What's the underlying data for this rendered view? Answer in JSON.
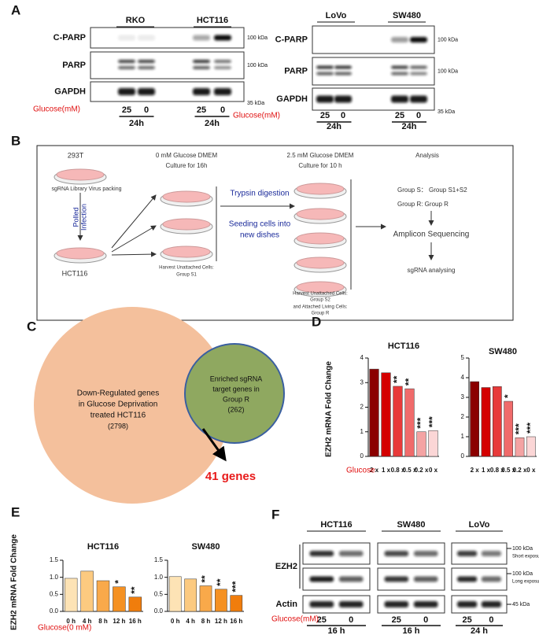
{
  "panels": {
    "A": {
      "letter": "A",
      "blots": [
        {
          "lines": [
            "RKO",
            "HCT116"
          ],
          "rows": [
            "C-PARP",
            "PARP",
            "GAPDH"
          ],
          "markers": [
            "100 kDa",
            "100 kDa",
            "35 kDa"
          ],
          "condition": "Glucose(mM)",
          "lanes": [
            "25",
            "0",
            "25",
            "0"
          ],
          "time": [
            "24h",
            "24h"
          ]
        },
        {
          "lines": [
            "LoVo",
            "SW480"
          ],
          "rows": [
            "C-PARP",
            "PARP",
            "GAPDH"
          ],
          "markers": [
            "100 kDa",
            "100 kDa",
            "35 kDa"
          ],
          "condition": "Glucose(mM)",
          "lanes": [
            "25",
            "0",
            "25",
            "0"
          ],
          "time": [
            "24h",
            "24h"
          ]
        }
      ]
    },
    "B": {
      "letter": "B",
      "cell_293t": "293T",
      "packing": "sgRNA Library Virus packing",
      "infection": [
        "Polled",
        "Infection"
      ],
      "hct116": "HCT116",
      "step1": [
        "0 mM Glucose DMEM",
        "Culture for 16h"
      ],
      "harvest1": [
        "Harvest Unattached Cells:",
        "Group S1"
      ],
      "trypsin": "Trypsin digestion",
      "seeding": [
        "Seeding cells into",
        "new dishes"
      ],
      "step2": [
        "2.5 mM Glucose DMEM",
        "Culture for 10 h"
      ],
      "harvest2": [
        "Harvest Unattached Cells:",
        "Group S2",
        "and Attached Living Cells:",
        "Group R"
      ],
      "analysis": "Analysis",
      "groups": [
        "Group S： Group S1+S2",
        "Group R:   Group R"
      ],
      "sequencing": "Amplicon Sequencing",
      "analysing": "sgRNA analysing"
    },
    "C": {
      "letter": "C",
      "large": [
        "Down-Regulated genes",
        "in Glucose Deprivation",
        "treated HCT116",
        "(2798)"
      ],
      "small": [
        "Enriched sgRNA",
        "target genes in",
        "Group R",
        "(262)"
      ],
      "overlap": "41 genes"
    },
    "D": {
      "letter": "D"
    },
    "E": {
      "letter": "E"
    },
    "F": {
      "letter": "F",
      "lines": [
        "HCT116",
        "SW480",
        "LoVo"
      ],
      "rows": [
        "EZH2",
        "Actin"
      ],
      "markers": [
        "100 kDa",
        "100 kDa",
        "45 kDa"
      ],
      "exposures": [
        "Short exposure",
        "Long exposure"
      ],
      "condition": "Glucose(mM)",
      "lanes": [
        "25",
        "0",
        "25",
        "0",
        "25",
        "0"
      ],
      "time": [
        "16 h",
        "16 h",
        "24 h"
      ]
    }
  },
  "chart_data": [
    {
      "type": "bar",
      "title": "HCT116",
      "ylabel": "EZH2 mRNA Fold Change",
      "xlabel": "Glucose",
      "categories": [
        "2 x",
        "1 x",
        "0.8 x",
        "0.5 x",
        "0.2 x",
        "0 x"
      ],
      "values": [
        3.55,
        3.4,
        2.85,
        2.75,
        1.0,
        1.05
      ],
      "annotations": [
        null,
        null,
        "**",
        "**",
        "***",
        "***"
      ],
      "colors": [
        "#8b0000",
        "#d40000",
        "#e83a3a",
        "#f06b6b",
        "#f4a3a3",
        "#fbd6d6"
      ],
      "ylim": [
        0,
        4
      ],
      "yticks": [
        0,
        1,
        2,
        3,
        4
      ]
    },
    {
      "type": "bar",
      "title": "SW480",
      "categories": [
        "2 x",
        "1 x",
        "0.8 x",
        "0.5 x",
        "0.2 x",
        "0 x"
      ],
      "values": [
        3.8,
        3.5,
        3.55,
        2.8,
        0.95,
        1.0
      ],
      "annotations": [
        null,
        null,
        null,
        "*",
        "***",
        "***"
      ],
      "colors": [
        "#8b0000",
        "#d40000",
        "#e83a3a",
        "#f06b6b",
        "#f4a3a3",
        "#fbd6d6"
      ],
      "ylim": [
        0,
        5
      ],
      "yticks": [
        0,
        1,
        2,
        3,
        4,
        5
      ]
    },
    {
      "type": "bar",
      "title": "HCT116",
      "ylabel": "EZH2 mRNA Fold Change",
      "xlabel": "Glucose(0 mM)",
      "categories": [
        "0 h",
        "4 h",
        "8 h",
        "12 h",
        "16 h"
      ],
      "values": [
        0.97,
        1.18,
        0.9,
        0.72,
        0.42
      ],
      "annotations": [
        null,
        null,
        null,
        "*",
        "**"
      ],
      "colors": [
        "#fde3b5",
        "#fcca80",
        "#f9a94a",
        "#f59122",
        "#f07d0c"
      ],
      "ylim": [
        0,
        1.5
      ],
      "yticks": [
        {
          "value": 0,
          "label": "0.0"
        },
        0.5,
        {
          "value": 1,
          "label": "1.0"
        },
        1.5
      ]
    },
    {
      "type": "bar",
      "title": "SW480",
      "categories": [
        "0 h",
        "4 h",
        "8 h",
        "12 h",
        "16 h"
      ],
      "values": [
        1.02,
        0.95,
        0.75,
        0.65,
        0.47
      ],
      "annotations": [
        null,
        null,
        "**",
        "**",
        "***"
      ],
      "colors": [
        "#fde3b5",
        "#fcca80",
        "#f9a94a",
        "#f59122",
        "#f07d0c"
      ],
      "ylim": [
        0,
        1.5
      ],
      "yticks": [
        {
          "value": 0,
          "label": "0.0"
        },
        0.5,
        {
          "value": 1,
          "label": "1.0"
        },
        1.5
      ]
    }
  ]
}
